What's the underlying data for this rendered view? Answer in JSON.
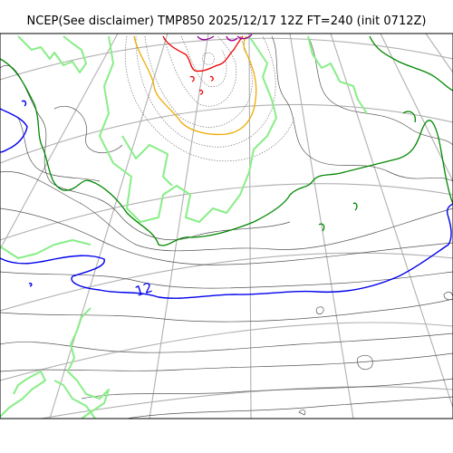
{
  "title": "NCEP(See disclaimer) TMP850 2025/12/17 12Z FT=240 (init 0712Z)",
  "map": {
    "contour_label": "12",
    "colors": {
      "isotherm_12": "#0000ee",
      "isotherm_green": "#008800",
      "isotherm_lightgreen": "#88ee88",
      "isotherm_orange": "#eeaa00",
      "isotherm_red": "#ee0000",
      "isotherm_purple": "#990099",
      "graticule": "#b0b0b0",
      "thin_contour": "#555555"
    }
  }
}
